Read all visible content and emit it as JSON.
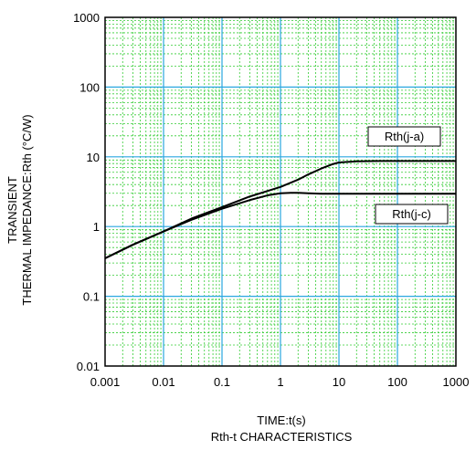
{
  "chart_data": {
    "type": "line",
    "title": "Rth-t CHARACTERISTICS",
    "xlabel": "TIME:t(s)",
    "ylabel_lines": [
      "TRANSIENT",
      "THERMAL IMPEDANCE:Rth (°C/W)"
    ],
    "x_scale": "log",
    "y_scale": "log",
    "xlim": [
      0.001,
      1000
    ],
    "ylim": [
      0.01,
      1000
    ],
    "x_ticks": [
      "0.001",
      "0.01",
      "0.1",
      "1",
      "10",
      "100",
      "1000"
    ],
    "y_ticks": [
      "0.01",
      "0.1",
      "1",
      "10",
      "100",
      "1000"
    ],
    "grid": true,
    "colors": {
      "major_grid": "#2aa7e0",
      "minor_grid": "#33cc33",
      "series": "#000000"
    },
    "series": [
      {
        "name": "Rth(j-a)",
        "x": [
          0.001,
          0.003,
          0.01,
          0.03,
          0.1,
          0.3,
          1,
          2,
          3,
          5,
          8,
          10,
          20,
          50,
          100,
          1000
        ],
        "y": [
          0.35,
          0.55,
          0.85,
          1.3,
          1.9,
          2.7,
          3.7,
          4.7,
          5.6,
          6.8,
          7.9,
          8.3,
          8.6,
          8.7,
          8.7,
          8.7
        ]
      },
      {
        "name": "Rth(j-c)",
        "x": [
          0.001,
          0.003,
          0.01,
          0.03,
          0.1,
          0.3,
          0.6,
          1,
          1.5,
          2,
          3,
          5,
          10,
          100,
          1000
        ],
        "y": [
          0.35,
          0.55,
          0.85,
          1.25,
          1.8,
          2.4,
          2.8,
          3.0,
          3.05,
          3.05,
          3.0,
          2.95,
          2.95,
          2.95,
          2.95
        ]
      }
    ]
  }
}
